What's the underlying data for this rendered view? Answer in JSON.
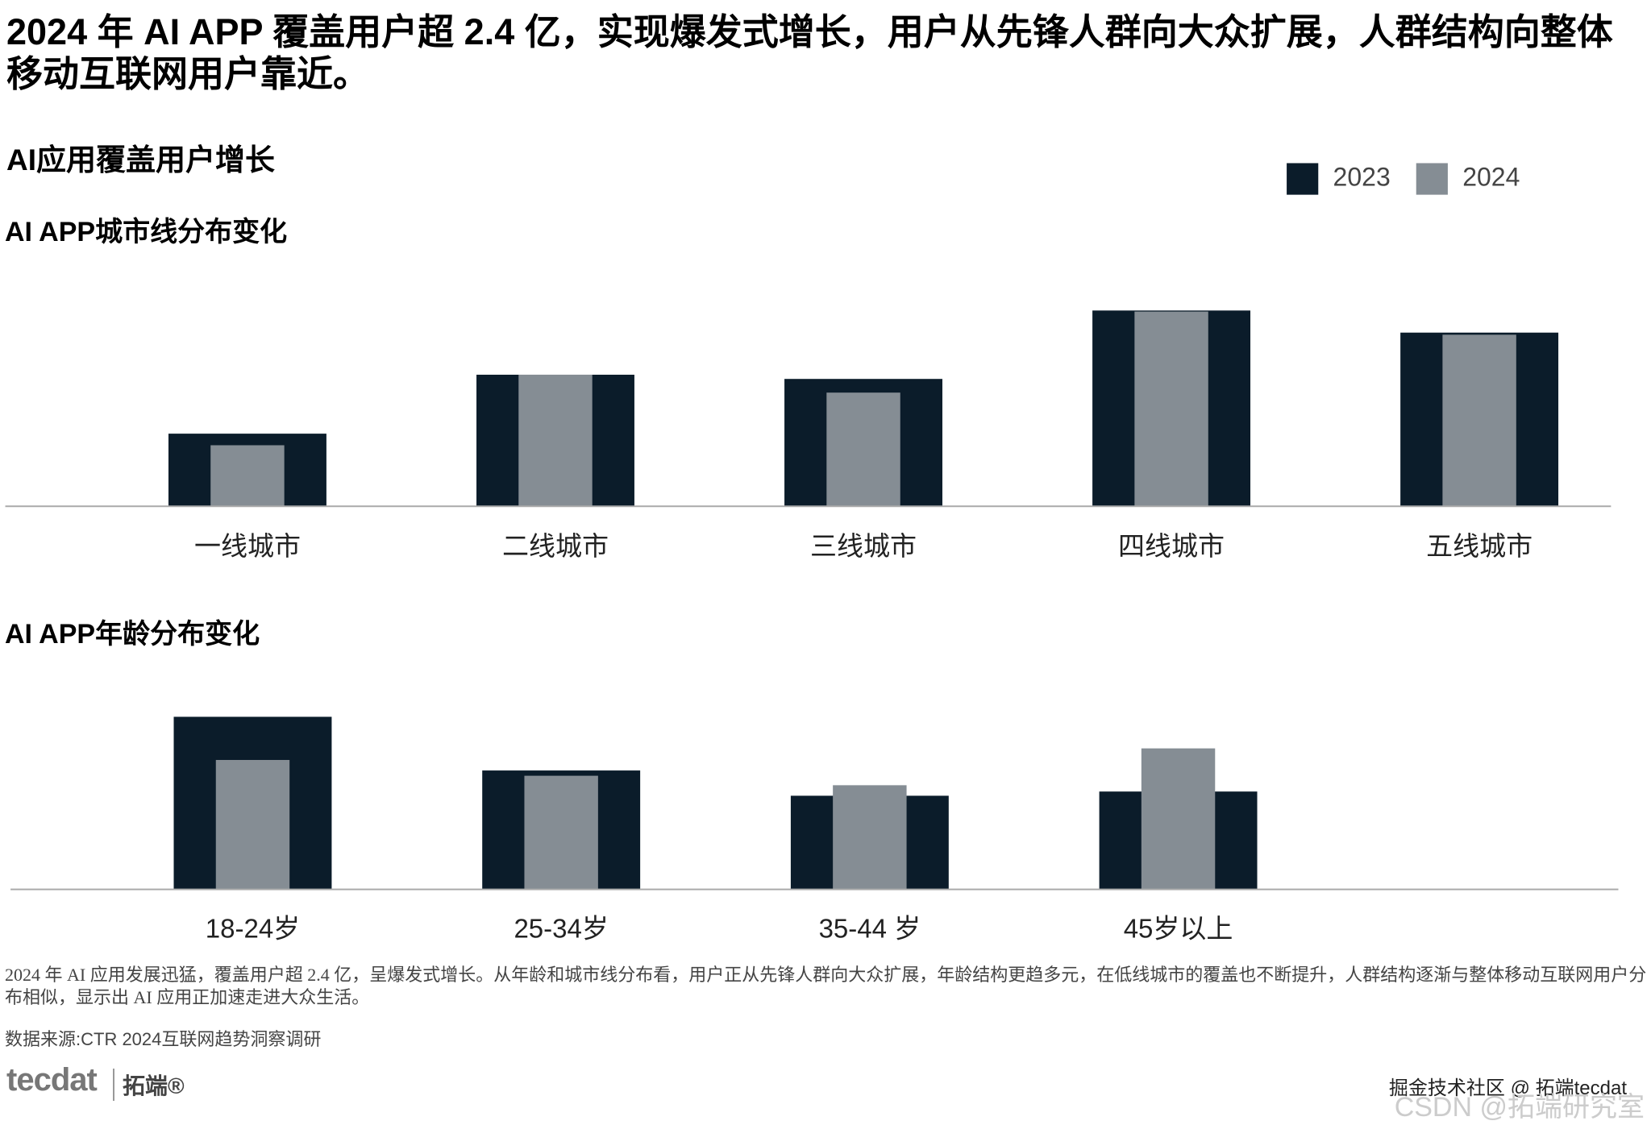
{
  "headline": "2024 年 AI APP 覆盖用户超 2.4 亿，实现爆发式增长，用户从先锋人群向大众扩展，人群结构向整体移动互联网用户靠近。",
  "section_title": "AI应用覆盖用户增长",
  "chart_data": [
    {
      "type": "bar",
      "title": "AI APP城市线分布变化",
      "categories": [
        "一线城市",
        "二线城市",
        "三线城市",
        "四线城市",
        "五线城市"
      ],
      "series": [
        {
          "name": "2023",
          "color": "#0b1c2a",
          "values": [
            69,
            125,
            121,
            186,
            165
          ]
        },
        {
          "name": "2024",
          "color": "#858d94",
          "values": [
            58,
            125,
            108,
            185,
            163
          ]
        }
      ],
      "ylim": [
        0,
        200
      ]
    },
    {
      "type": "bar",
      "title": "AI APP年龄分布变化",
      "categories": [
        "18-24岁",
        "25-34岁",
        "35-44 岁",
        "45岁以上"
      ],
      "series": [
        {
          "color": "#0b1c2a",
          "values": [
            164,
            113,
            89,
            93
          ]
        },
        {
          "color": "#858d94",
          "values": [
            123,
            108,
            99,
            134
          ]
        }
      ],
      "ylim": [
        0,
        200
      ]
    }
  ],
  "footnote": "2024 年 AI 应用发展迅猛，覆盖用户超 2.4 亿，呈爆发式增长。从年龄和城市线分布看，用户正从先锋人群向大众扩展，年龄结构更趋多元，在低线城市的覆盖也不断提升，人群结构逐渐与整体移动互联网用户分布相似，显示出 AI 应用正加速走进大众生活。",
  "source": "数据来源:CTR 2024互联网趋势洞察调研",
  "logo": [
    "tecdat",
    "拓端®"
  ],
  "watermark": [
    "掘金技术社区 @ 拓端tecdat",
    "CSDN @拓端研究室"
  ]
}
